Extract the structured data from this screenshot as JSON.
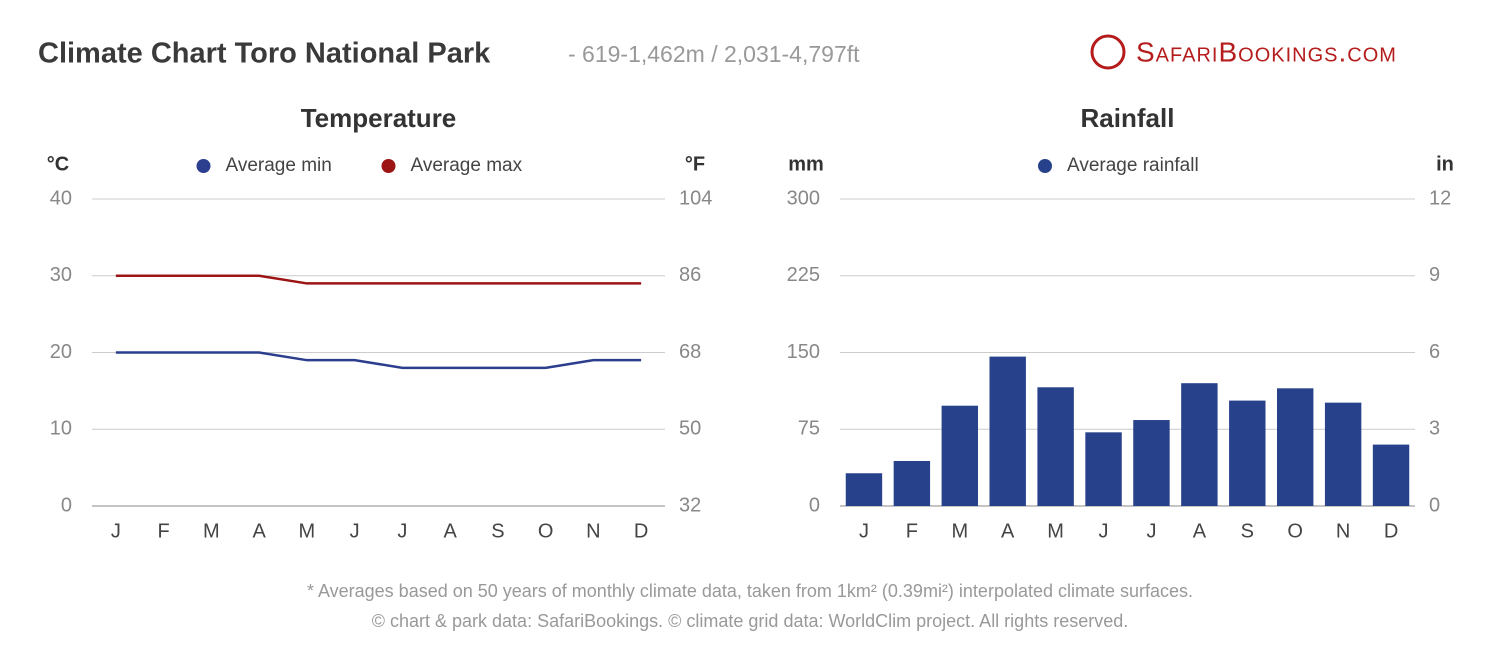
{
  "header": {
    "title": "Climate Chart Toro National Park",
    "subtitle": "- 619-1,462m / 2,031-4,797ft",
    "logo": "SafariBookings.com"
  },
  "chart_data": [
    {
      "type": "line",
      "title": "Temperature",
      "y_label": "°C",
      "y2_label": "°F",
      "categories": [
        "J",
        "F",
        "M",
        "A",
        "M",
        "J",
        "J",
        "A",
        "S",
        "O",
        "N",
        "D"
      ],
      "series": [
        {
          "name": "Average min",
          "color": "#2c3f8e",
          "values": [
            20,
            20,
            20,
            20,
            19,
            19,
            18,
            18,
            18,
            18,
            19,
            19
          ]
        },
        {
          "name": "Average max",
          "color": "#9c1414",
          "values": [
            30,
            30,
            30,
            30,
            29,
            29,
            29,
            29,
            29,
            29,
            29,
            29
          ]
        }
      ],
      "ylim": [
        0,
        40
      ],
      "yticks": [
        0,
        10,
        20,
        30,
        40
      ],
      "y2lim": [
        32,
        104
      ],
      "y2ticks": [
        32,
        50,
        68,
        86,
        104
      ],
      "grid": true
    },
    {
      "type": "bar",
      "title": "Rainfall",
      "y_label": "mm",
      "y2_label": "in",
      "categories": [
        "J",
        "F",
        "M",
        "A",
        "M",
        "J",
        "J",
        "A",
        "S",
        "O",
        "N",
        "D"
      ],
      "series": [
        {
          "name": "Average rainfall",
          "color": "#27418a",
          "values": [
            32,
            44,
            98,
            146,
            116,
            72,
            84,
            120,
            103,
            115,
            101,
            60
          ]
        }
      ],
      "ylim": [
        0,
        300
      ],
      "yticks": [
        0,
        75,
        150,
        225,
        300
      ],
      "y2lim": [
        0,
        12
      ],
      "y2ticks": [
        0,
        3,
        6,
        9,
        12
      ],
      "grid": true
    }
  ],
  "footer": [
    "* Averages based on 50 years of monthly climate data, taken from 1km² (0.39mi²) interpolated climate surfaces.",
    "© chart & park data: SafariBookings. © climate grid data: WorldClim project. All rights reserved."
  ]
}
